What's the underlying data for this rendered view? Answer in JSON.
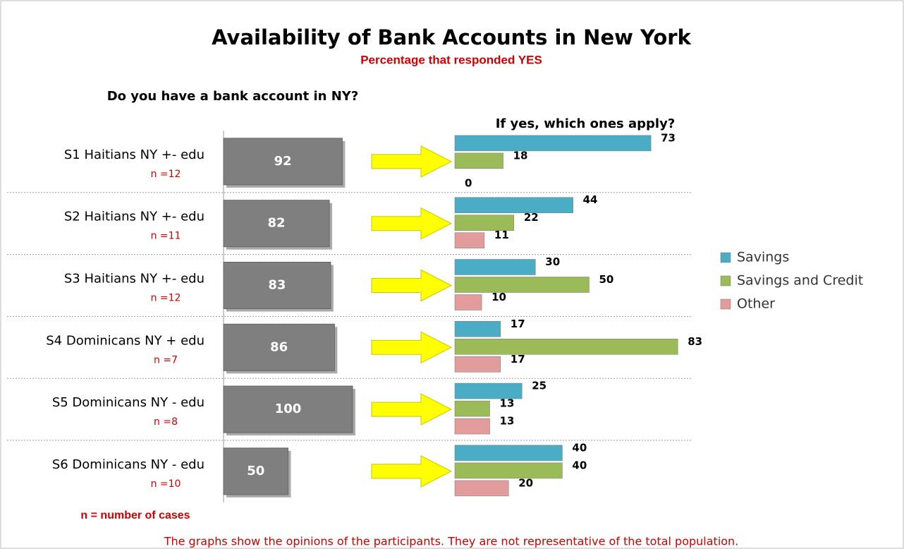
{
  "chart_data": [
    {
      "type": "bar",
      "orientation": "horizontal",
      "title": "Availability of Bank Accounts in New York",
      "subtitle": "Percentage that responded YES",
      "axis_label": "Do you have a bank account in NY?",
      "categories": [
        "S1 Haitians NY +- edu",
        "S2 Haitians NY +- edu",
        "S3 Haitians NY +- edu",
        "S4 Dominicans NY + edu",
        "S5 Dominicans NY - edu",
        "S6 Dominicans NY - edu"
      ],
      "category_notes": [
        "n =12",
        "n =11",
        "n =12",
        "n =7",
        "n =8",
        "n =10"
      ],
      "values": [
        92,
        82,
        83,
        86,
        100,
        50
      ],
      "color": "#7f7f7f",
      "xlim": [
        0,
        100
      ]
    },
    {
      "type": "bar",
      "orientation": "horizontal",
      "axis_label": "If yes, which ones apply?",
      "series": [
        {
          "name": "Savings",
          "color": "#4bacc6",
          "values": [
            73,
            44,
            30,
            17,
            25,
            40
          ]
        },
        {
          "name": "Savings and Credit",
          "color": "#9bbb59",
          "values": [
            18,
            22,
            50,
            83,
            13,
            40
          ]
        },
        {
          "name": "Other",
          "color": "#e39c9c",
          "values": [
            0,
            11,
            10,
            17,
            13,
            20
          ]
        }
      ],
      "xlim": [
        0,
        100
      ]
    }
  ],
  "footnote": "n = number of cases",
  "note": "The graphs show the opinions of the participants.  They are not representative  of the total population."
}
